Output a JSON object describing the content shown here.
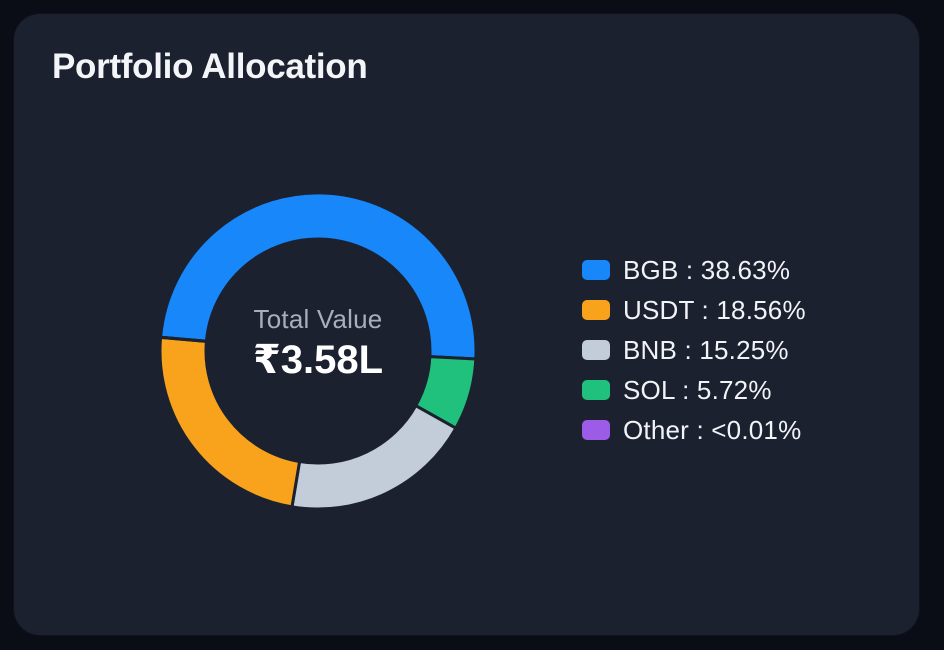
{
  "theme": {
    "page_bg": "#0a0d15",
    "card_bg": "#1c2130",
    "title_color": "#f3f5f8",
    "legend_text_color": "#f1f3f7",
    "center_label_color": "#a8aebb",
    "center_value_color": "#ffffff"
  },
  "chart_data": {
    "type": "donut",
    "title": "Portfolio Allocation",
    "center_label": "Total Value",
    "center_value": "₹3.58L",
    "legend_position": "right",
    "start_angle_deg": 275,
    "clockwise": true,
    "draw_order": [
      0,
      3,
      2,
      1,
      4
    ],
    "geometry": {
      "outer_radius": 158,
      "inner_radius": 112,
      "gap_stroke": 3
    },
    "series": [
      {
        "name": "BGB",
        "value": 38.63,
        "display": "38.63%",
        "legend": "BGB : 38.63%",
        "color": "#1787fa"
      },
      {
        "name": "USDT",
        "value": 18.56,
        "display": "18.56%",
        "legend": "USDT : 18.56%",
        "color": "#f8a31b"
      },
      {
        "name": "BNB",
        "value": 15.25,
        "display": "15.25%",
        "legend": "BNB : 15.25%",
        "color": "#c3ccd9"
      },
      {
        "name": "SOL",
        "value": 5.72,
        "display": "5.72%",
        "legend": "SOL : 5.72%",
        "color": "#20c17c"
      },
      {
        "name": "Other",
        "value": 0.01,
        "display": "<0.01%",
        "legend": "Other : <0.01%",
        "color": "#9c5ce8"
      }
    ]
  }
}
